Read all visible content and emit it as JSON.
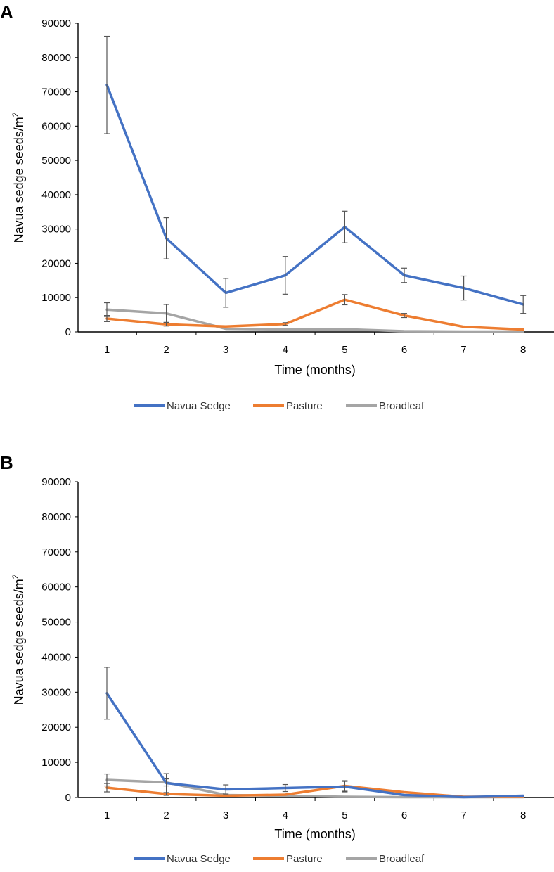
{
  "colors": {
    "navua_sedge": "#4472C4",
    "pasture": "#ED7D31",
    "broadleaf": "#A5A5A5"
  },
  "chart_data": [
    {
      "type": "line",
      "panel_label": "A",
      "ylabel": "Navua sedge seeds/m",
      "ylabel_superscript": "2",
      "xlabel": "Time (months)",
      "ylim": [
        0,
        90000
      ],
      "yticks": [
        "0",
        "10000",
        "20000",
        "30000",
        "40000",
        "50000",
        "60000",
        "70000",
        "80000",
        "90000"
      ],
      "categories": [
        "1",
        "2",
        "3",
        "4",
        "5",
        "6",
        "7",
        "8"
      ],
      "series": [
        {
          "name": "Navua Sedge",
          "color_key": "navua_sedge",
          "values": [
            72000,
            27300,
            11400,
            16500,
            30600,
            16500,
            12800,
            8000
          ],
          "errors": [
            14200,
            6000,
            4200,
            5500,
            4600,
            2100,
            3500,
            2600
          ]
        },
        {
          "name": "Pasture",
          "color_key": "pasture",
          "values": [
            3900,
            2200,
            1600,
            2300,
            9400,
            4800,
            1500,
            700
          ],
          "errors": [
            900,
            500,
            300,
            400,
            1500,
            600,
            200,
            100
          ]
        },
        {
          "name": "Broadleaf",
          "color_key": "broadleaf",
          "values": [
            6500,
            5400,
            900,
            700,
            800,
            200,
            100,
            100
          ],
          "errors": [
            2000,
            2600,
            300,
            150,
            150,
            50,
            30,
            30
          ]
        }
      ],
      "legend": [
        "Navua Sedge",
        "Pasture",
        "Broadleaf"
      ],
      "legend_position": "bottom-center"
    },
    {
      "type": "line",
      "panel_label": "B",
      "ylabel": "Navua sedge seeds/m",
      "ylabel_superscript": "2",
      "xlabel": "Time (months)",
      "ylim": [
        0,
        90000
      ],
      "yticks": [
        "0",
        "10000",
        "20000",
        "30000",
        "40000",
        "50000",
        "60000",
        "70000",
        "80000",
        "90000"
      ],
      "categories": [
        "1",
        "2",
        "3",
        "4",
        "5",
        "6",
        "7",
        "8"
      ],
      "series": [
        {
          "name": "Navua Sedge",
          "color_key": "navua_sedge",
          "values": [
            29700,
            4100,
            2300,
            2700,
            3100,
            700,
            100,
            500
          ],
          "errors": [
            7400,
            2700,
            1300,
            1000,
            1500,
            300,
            50,
            100
          ]
        },
        {
          "name": "Pasture",
          "color_key": "pasture",
          "values": [
            2800,
            1000,
            500,
            800,
            3300,
            1500,
            200,
            200
          ],
          "errors": [
            1200,
            400,
            200,
            200,
            1500,
            300,
            50,
            50
          ]
        },
        {
          "name": "Broadleaf",
          "color_key": "broadleaf",
          "values": [
            5000,
            4300,
            700,
            500,
            200,
            100,
            100,
            100
          ],
          "errors": [
            1700,
            1000,
            200,
            100,
            50,
            30,
            30,
            30
          ]
        }
      ],
      "legend": [
        "Navua Sedge",
        "Pasture",
        "Broadleaf"
      ],
      "legend_position": "bottom-center"
    }
  ]
}
